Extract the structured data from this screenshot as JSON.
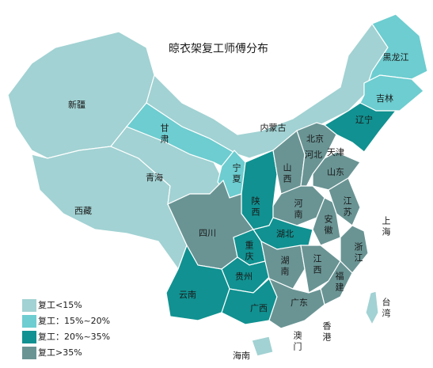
{
  "title": "晾衣架复工师傅分布",
  "legend": [
    {
      "label": "复工<15%",
      "color": "#a2d2d3"
    },
    {
      "label": "复工：15%~20%",
      "color": "#6dcdd0"
    },
    {
      "label": "复工：20%~35%",
      "color": "#119191"
    },
    {
      "label": "复工>35%",
      "color": "#6a9494"
    }
  ],
  "regions": [
    {
      "name": "新疆",
      "level": 0
    },
    {
      "name": "西藏",
      "level": 0
    },
    {
      "name": "青海",
      "level": 0
    },
    {
      "name": "甘肃",
      "level": 1
    },
    {
      "name": "内蒙古",
      "level": 0
    },
    {
      "name": "黑龙江",
      "level": 1
    },
    {
      "name": "吉林",
      "level": 1
    },
    {
      "name": "辽宁",
      "level": 2
    },
    {
      "name": "宁夏",
      "level": 1
    },
    {
      "name": "陕西",
      "level": 2
    },
    {
      "name": "山西",
      "level": 3
    },
    {
      "name": "河北",
      "level": 3
    },
    {
      "name": "山东",
      "level": 3
    },
    {
      "name": "河南",
      "level": 3
    },
    {
      "name": "江苏",
      "level": 3
    },
    {
      "name": "安徽",
      "level": 3
    },
    {
      "name": "浙江",
      "level": 3
    },
    {
      "name": "湖北",
      "level": 2
    },
    {
      "name": "四川",
      "level": 3
    },
    {
      "name": "重庆",
      "level": 2
    },
    {
      "name": "贵州",
      "level": 2
    },
    {
      "name": "云南",
      "level": 2
    },
    {
      "name": "湖南",
      "level": 3
    },
    {
      "name": "江西",
      "level": 3
    },
    {
      "name": "福建",
      "level": 3
    },
    {
      "name": "广西",
      "level": 2
    },
    {
      "name": "广东",
      "level": 3
    },
    {
      "name": "海南",
      "level": 0
    },
    {
      "name": "台湾",
      "level": 0
    },
    {
      "name": "北京"
    },
    {
      "name": "天津"
    },
    {
      "name": "上海"
    },
    {
      "name": "香港"
    },
    {
      "name": "澳门"
    }
  ]
}
